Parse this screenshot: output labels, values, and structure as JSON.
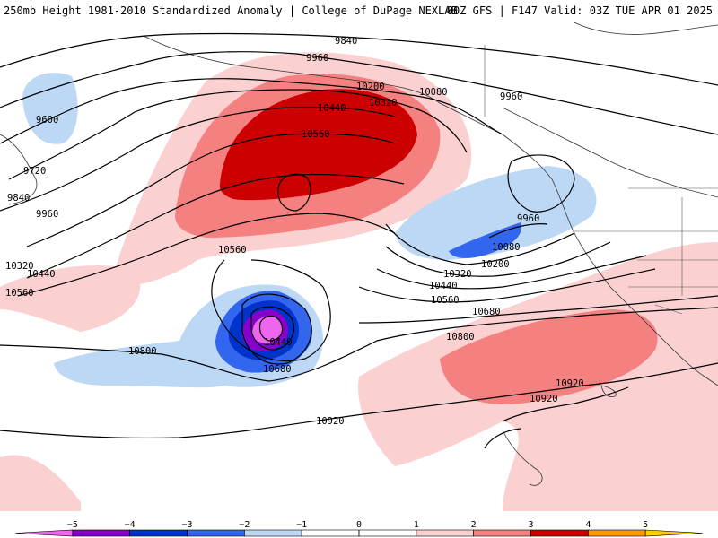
{
  "header": {
    "title_left": "250mb Height 1981-2010 Standardized Anomaly | College of DuPage NEXLAB",
    "title_right": "00Z GFS | F147 Valid: 03Z TUE APR 01 2025"
  },
  "contour_labels": [
    {
      "text": "9840"
    },
    {
      "text": "9960"
    },
    {
      "text": "10200"
    },
    {
      "text": "10080"
    },
    {
      "text": "9960"
    },
    {
      "text": "10440"
    },
    {
      "text": "10320"
    },
    {
      "text": "10560"
    },
    {
      "text": "9600"
    },
    {
      "text": "9720"
    },
    {
      "text": "9840"
    },
    {
      "text": "9960"
    },
    {
      "text": "10320"
    },
    {
      "text": "10440"
    },
    {
      "text": "10560"
    },
    {
      "text": "9960"
    },
    {
      "text": "10080"
    },
    {
      "text": "10200"
    },
    {
      "text": "10320"
    },
    {
      "text": "10440"
    },
    {
      "text": "10560"
    },
    {
      "text": "10560"
    },
    {
      "text": "10680"
    },
    {
      "text": "10800"
    },
    {
      "text": "10800"
    },
    {
      "text": "10440"
    },
    {
      "text": "10680"
    },
    {
      "text": "10920"
    },
    {
      "text": "10920"
    },
    {
      "text": "10920"
    }
  ],
  "colorbar": {
    "ticks": [
      "−5",
      "−4",
      "−3",
      "−2",
      "−1",
      "0",
      "1",
      "2",
      "3",
      "4",
      "5"
    ],
    "colors": {
      "neg_5_plus": "#ee66ee",
      "neg_4_5": "#8800cc",
      "neg_3_4": "#0033cc",
      "neg_2_3": "#3366ee",
      "neg_1_2": "#bcd8f5",
      "neutral": "#ffffff",
      "pos_1_2": "#fad0d0",
      "pos_2_3": "#f48080",
      "pos_3_4": "#cc0000",
      "pos_4_5": "#ff9900",
      "pos_5_plus": "#ffcc00"
    }
  }
}
